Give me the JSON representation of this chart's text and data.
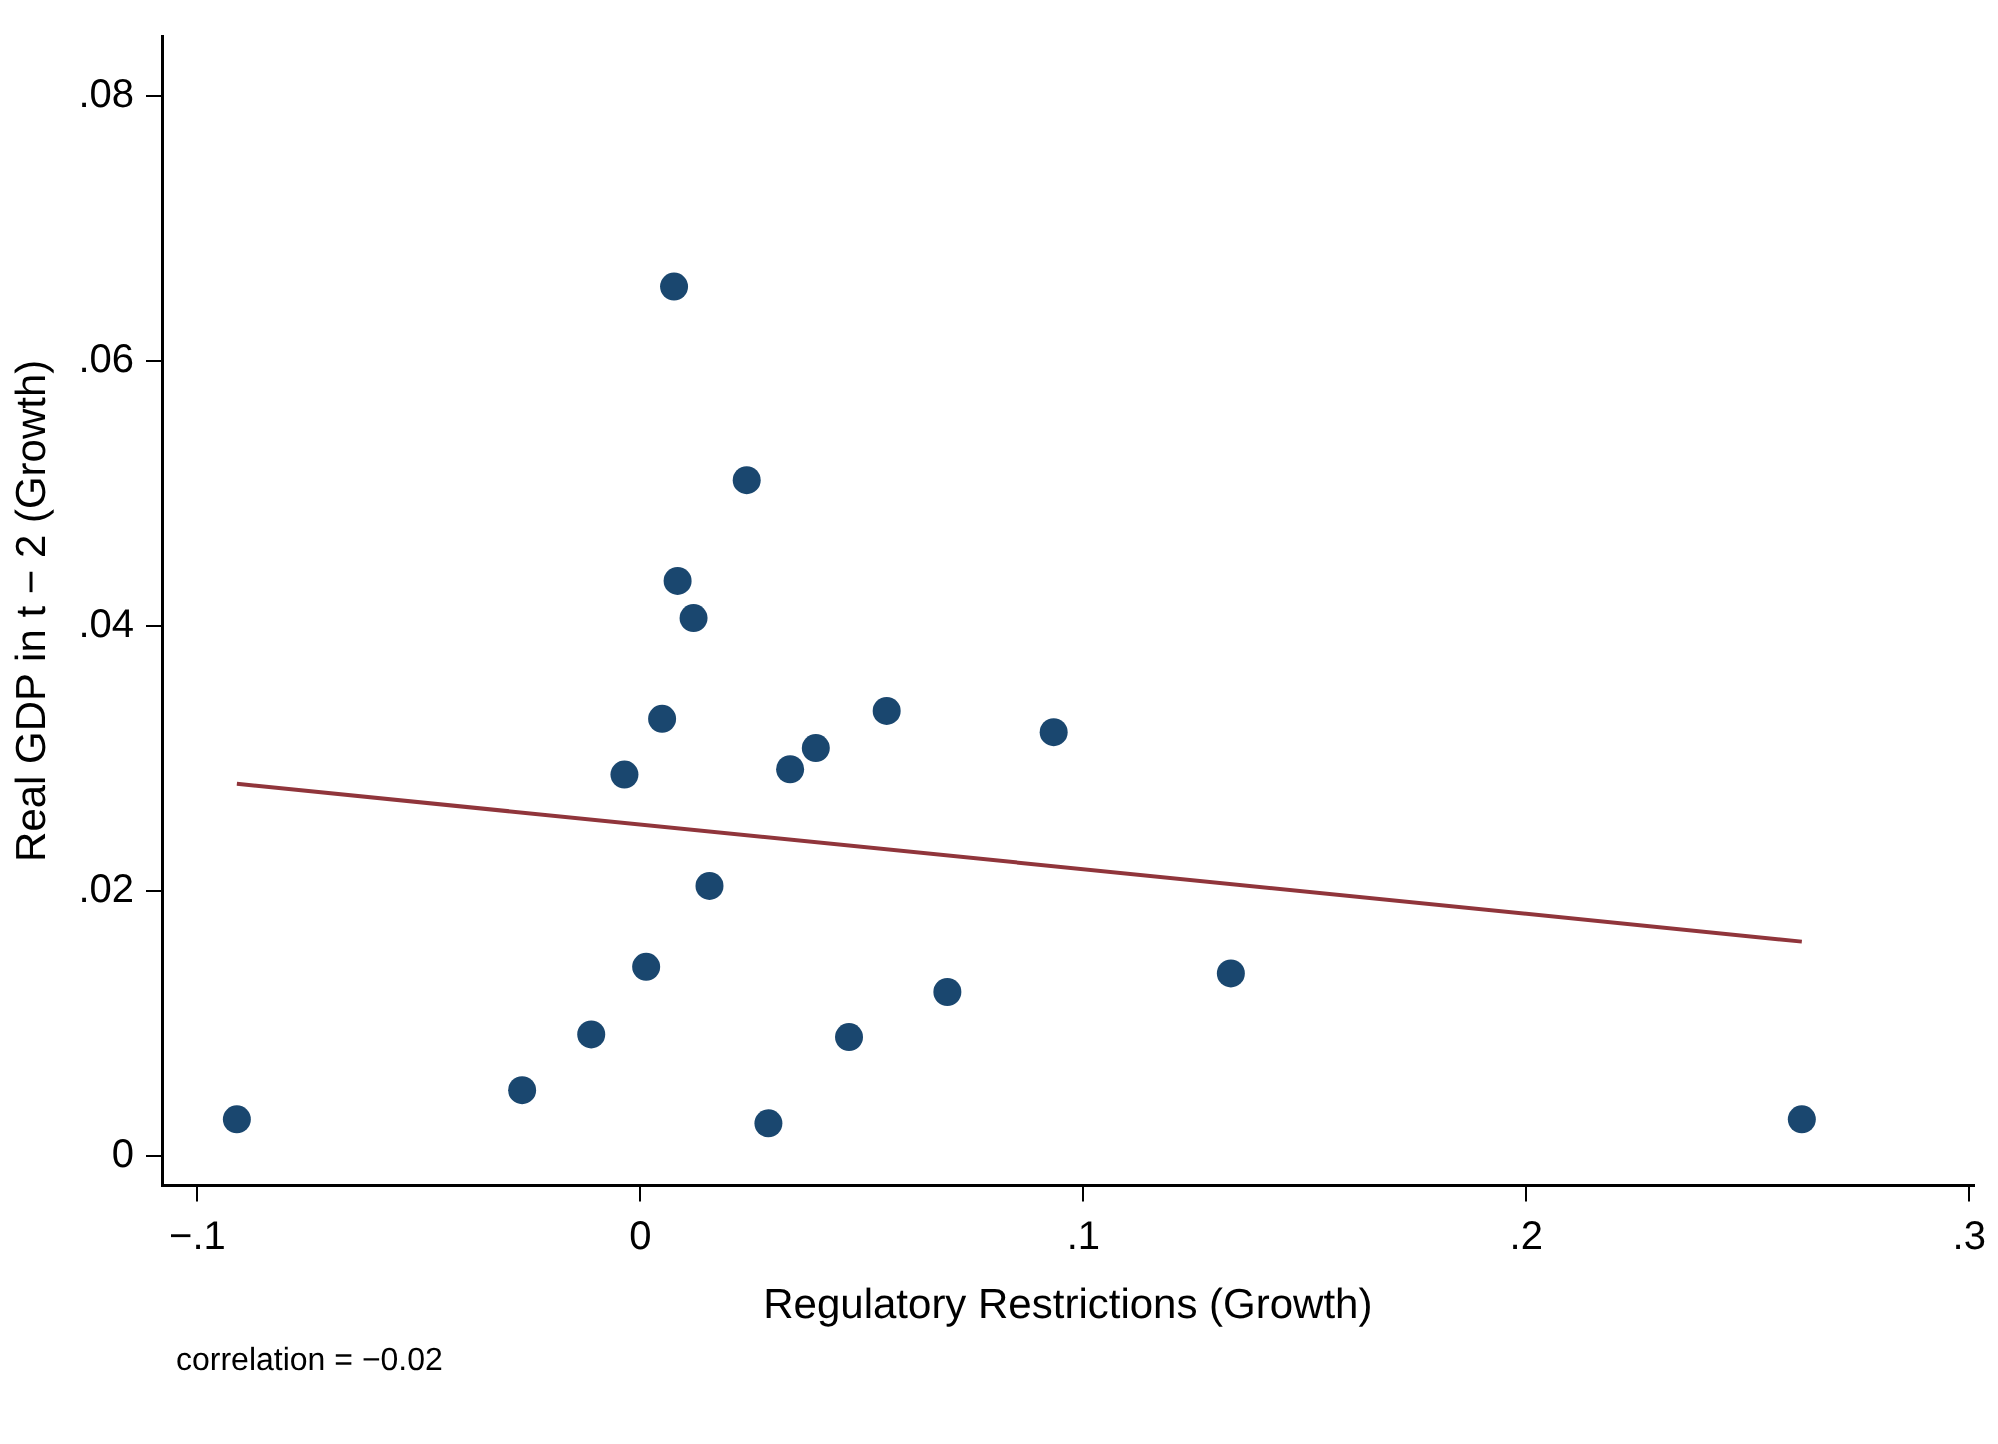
{
  "chart_data": {
    "type": "scatter",
    "xlabel": "Regulatory Restrictions (Growth)",
    "ylabel": "Real GDP in t − 2 (Growth)",
    "x": [
      -0.0911,
      -0.0267,
      -0.0111,
      0.0013,
      -0.0036,
      0.0049,
      0.0084,
      0.012,
      0.0076,
      0.024,
      0.0156,
      0.0289,
      0.0338,
      0.0396,
      0.0471,
      0.0556,
      0.0693,
      0.0933,
      0.1333,
      0.2622
    ],
    "series": [
      {
        "color": "#1a476f",
        "marker": "circle",
        "values": [
          0.0028,
          0.005,
          0.0092,
          0.0143,
          0.0288,
          0.033,
          0.0434,
          0.0406,
          0.0656,
          0.051,
          0.0204,
          0.0025,
          0.0292,
          0.0308,
          0.009,
          0.0336,
          0.0124,
          0.032,
          0.0138,
          0.0028
        ]
      },
      {
        "type": "line",
        "color": "#90353b",
        "marker": "none",
        "x": [
          -0.0911,
          0.2622
        ],
        "values": [
          0.0281,
          0.0162
        ]
      }
    ],
    "xlim": [
      -0.108,
      0.301
    ],
    "ylim": [
      -0.0022,
      0.0845
    ],
    "xticks": [
      {
        "value": -0.1,
        "label": "−.1"
      },
      0,
      {
        "value": 0.1,
        "label": ".1"
      },
      {
        "value": 0.2,
        "label": ".2"
      },
      {
        "value": 0.3,
        "label": ".3"
      }
    ],
    "yticks": [
      0,
      {
        "value": 0.02,
        "label": ".02"
      },
      {
        "value": 0.04,
        "label": ".04"
      },
      {
        "value": 0.06,
        "label": ".06"
      },
      {
        "value": 0.08,
        "label": ".08"
      }
    ],
    "grid": false,
    "legend": false,
    "annotations": [
      "correlation = −0.02"
    ]
  }
}
